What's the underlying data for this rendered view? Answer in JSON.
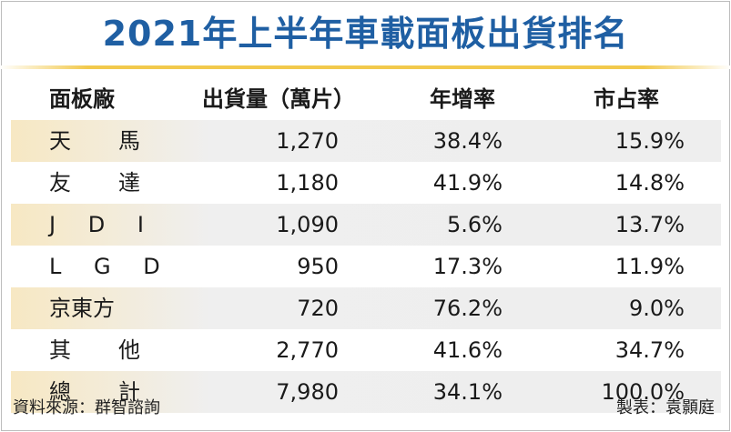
{
  "title": "2021年上半年車載面板出貨排名",
  "header": {
    "col0": "面板廠",
    "col1": "出貨量（萬片）",
    "col2": "年增率",
    "col3": "市占率"
  },
  "rows": [
    {
      "name": "天　馬",
      "shipment": "1,270",
      "growth": "38.4%",
      "share": "15.9%"
    },
    {
      "name": "友　達",
      "shipment": "1,180",
      "growth": "41.9%",
      "share": "14.8%"
    },
    {
      "name": "J D I",
      "shipment": "1,090",
      "growth": "5.6%",
      "share": "13.7%"
    },
    {
      "name": "L G D",
      "shipment": "950",
      "growth": "17.3%",
      "share": "11.9%"
    },
    {
      "name": "京東方",
      "shipment": "720",
      "growth": "76.2%",
      "share": "9.0%"
    },
    {
      "name": "其　他",
      "shipment": "2,770",
      "growth": "41.6%",
      "share": "34.7%"
    },
    {
      "name": "總　計",
      "shipment": "7,980",
      "growth": "34.1%",
      "share": "100.0%"
    }
  ],
  "footer": {
    "source": "資料來源：群智諮詢",
    "credit": "製表：袁顥庭"
  },
  "colors": {
    "title": "#1f5fa3",
    "rule": "#f2c94c",
    "shade_left": "#f7e8c3",
    "shade": "#eeeeee"
  }
}
